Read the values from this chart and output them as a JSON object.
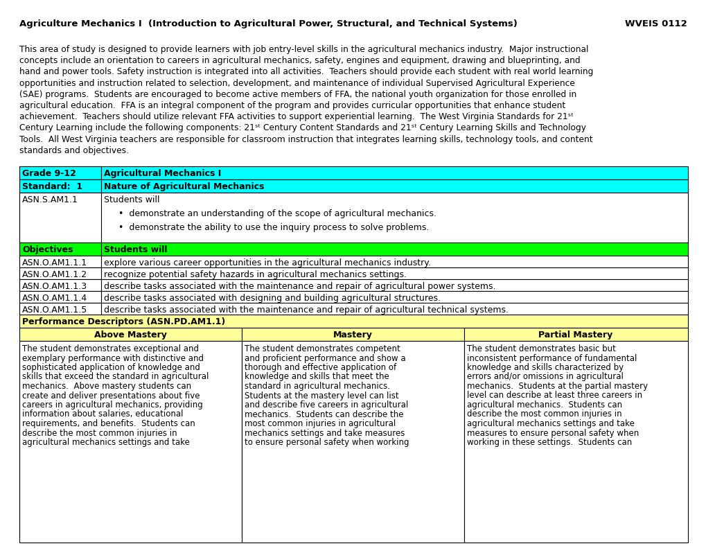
{
  "title_left": "Agriculture Mechanics I  (Introduction to Agricultural Power, Structural, and Technical Systems)",
  "title_right": "WVEIS 0112",
  "cyan_color": "#00FFFF",
  "green_color": "#00FF00",
  "yellow_color": "#FFFF99",
  "white": "#FFFFFF",
  "row1_label": "Grade 9-12",
  "row1_value": "Agricultural Mechanics I",
  "row2_label": "Standard:  1",
  "row2_value": "Nature of Agricultural Mechanics",
  "row3_label": "ASN.S.AM1.1",
  "row3_value_title": "Students will",
  "row3_bullet1": "demonstrate an understanding of the scope of agricultural mechanics.",
  "row3_bullet2": "demonstrate the ability to use the inquiry process to solve problems.",
  "row4_label": "Objectives",
  "row4_value": "Students will",
  "objectives": [
    {
      "code": "ASN.O.AM1.1.1",
      "text": "explore various career opportunities in the agricultural mechanics industry."
    },
    {
      "code": "ASN.O.AM1.1.2",
      "text": "recognize potential safety hazards in agricultural mechanics settings."
    },
    {
      "code": "ASN.O.AM1.1.3",
      "text": "describe tasks associated with the maintenance and repair of agricultural power systems."
    },
    {
      "code": "ASN.O.AM1.1.4",
      "text": "describe tasks associated with designing and building agricultural structures."
    },
    {
      "code": "ASN.O.AM1.1.5",
      "text": "describe tasks associated with the maintenance and repair of agricultural technical systems."
    }
  ],
  "perf_desc_label": "Performance Descriptors (ASN.PD.AM1.1)",
  "col_above": "Above Mastery",
  "col_mastery": "Mastery",
  "col_partial": "Partial Mastery",
  "intro_lines": [
    "This area of study is designed to provide learners with job entry-level skills in the agricultural mechanics industry.  Major instructional",
    "concepts include an orientation to careers in agricultural mechanics, safety, engines and equipment, drawing and blueprinting, and",
    "hand and power tools. Safety instruction is integrated into all activities.  Teachers should provide each student with real world learning",
    "opportunities and instruction related to selection, development, and maintenance of individual Supervised Agricultural Experience",
    "(SAE) programs.  Students are encouraged to become active members of FFA, the national youth organization for those enrolled in",
    "agricultural education.  FFA is an integral component of the program and provides curricular opportunities that enhance student",
    "achievement.  Teachers should utilize relevant FFA activities to support experiential learning.  The West Virginia Standards for 21ˢᵗ",
    "Century Learning include the following components: 21ˢᵗ Century Content Standards and 21ˢᵗ Century Learning Skills and Technology",
    "Tools.  All West Virginia teachers are responsible for classroom instruction that integrates learning skills, technology tools, and content",
    "standards and objectives."
  ],
  "above_mastery_lines": [
    "The student demonstrates exceptional and",
    "exemplary performance with distinctive and",
    "sophisticated application of knowledge and",
    "skills that exceed the standard in agricultural",
    "mechanics.  Above mastery students can",
    "create and deliver presentations about five",
    "careers in agricultural mechanics, providing",
    "information about salaries, educational",
    "requirements, and benefits.  Students can",
    "describe the most common injuries in",
    "agricultural mechanics settings and take"
  ],
  "mastery_lines": [
    "The student demonstrates competent",
    "and proficient performance and show a",
    "thorough and effective application of",
    "knowledge and skills that meet the",
    "standard in agricultural mechanics.",
    "Students at the mastery level can list",
    "and describe five careers in agricultural",
    "mechanics.  Students can describe the",
    "most common injuries in agricultural",
    "mechanics settings and take measures",
    "to ensure personal safety when working"
  ],
  "partial_mastery_lines": [
    "The student demonstrates basic but",
    "inconsistent performance of fundamental",
    "knowledge and skills characterized by",
    "errors and/or omissions in agricultural",
    "mechanics.  Students at the partial mastery",
    "level can describe at least three careers in",
    "agricultural mechanics.  Students can",
    "describe the most common injuries in",
    "agricultural mechanics settings and take",
    "measures to ensure personal safety when",
    "working in these settings.  Students can"
  ]
}
